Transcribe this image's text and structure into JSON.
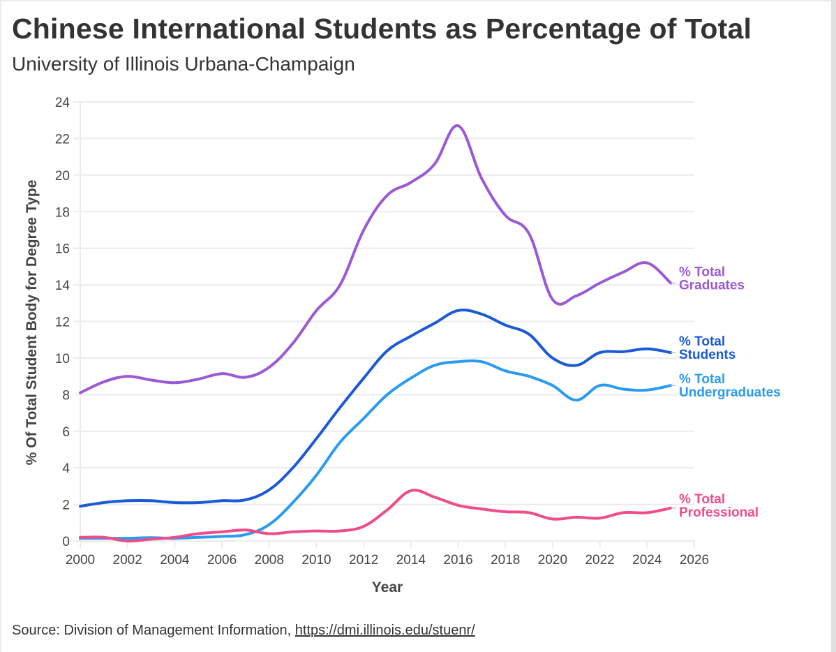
{
  "header": {
    "title": "Chinese International Students as Percentage of Total",
    "subtitle": "University of Illinois Urbana-Champaign"
  },
  "footer": {
    "source_prefix": "Source: Division of Management Information, ",
    "source_link": "https://dmi.illinois.edu/stuenr/"
  },
  "chart_data": {
    "type": "line",
    "title": "Chinese International Students as Percentage of Total",
    "subtitle": "University of Illinois Urbana-Champaign",
    "xlabel": "Year",
    "ylabel": "% Of Total Student Body for Degree Type",
    "xlim": [
      2000,
      2026
    ],
    "ylim": [
      0,
      24
    ],
    "x_ticks": [
      2000,
      2002,
      2004,
      2006,
      2008,
      2010,
      2012,
      2014,
      2016,
      2018,
      2020,
      2022,
      2024,
      2026
    ],
    "y_ticks": [
      0,
      2,
      4,
      6,
      8,
      10,
      12,
      14,
      16,
      18,
      20,
      22,
      24
    ],
    "grid": true,
    "legend": "direct labels at line ends (right)",
    "x": [
      2000,
      2001,
      2002,
      2003,
      2004,
      2005,
      2006,
      2007,
      2008,
      2009,
      2010,
      2011,
      2012,
      2013,
      2014,
      2015,
      2016,
      2017,
      2018,
      2019,
      2020,
      2021,
      2022,
      2023,
      2024,
      2025
    ],
    "series": [
      {
        "name": "% Total Graduates",
        "label_line1": "% Total",
        "label_line2": "Graduates",
        "color": "#9b59d6",
        "values": [
          8.1,
          8.7,
          9.0,
          8.8,
          8.65,
          8.85,
          9.15,
          8.95,
          9.5,
          10.8,
          12.6,
          14.0,
          17.0,
          18.9,
          19.6,
          20.6,
          22.7,
          19.8,
          17.8,
          16.8,
          13.2,
          13.4,
          14.1,
          14.7,
          15.2,
          14.1
        ]
      },
      {
        "name": "% Total Students",
        "label_line1": "% Total",
        "label_line2": "Students",
        "color": "#1a5ad6",
        "values": [
          1.9,
          2.1,
          2.2,
          2.2,
          2.1,
          2.1,
          2.2,
          2.25,
          2.8,
          4.0,
          5.6,
          7.3,
          8.9,
          10.4,
          11.2,
          11.9,
          12.6,
          12.4,
          11.8,
          11.3,
          10.0,
          9.6,
          10.3,
          10.35,
          10.5,
          10.3
        ]
      },
      {
        "name": "% Total Undergraduates",
        "label_line1": "% Total",
        "label_line2": "Undergraduates",
        "color": "#2b9bf0",
        "values": [
          0.15,
          0.15,
          0.15,
          0.18,
          0.15,
          0.2,
          0.25,
          0.35,
          0.9,
          2.1,
          3.6,
          5.4,
          6.7,
          8.0,
          8.9,
          9.6,
          9.8,
          9.8,
          9.3,
          9.0,
          8.5,
          7.7,
          8.5,
          8.3,
          8.25,
          8.5
        ]
      },
      {
        "name": "% Total Professional",
        "label_line1": "% Total",
        "label_line2": "Professional",
        "color": "#ee4d8a",
        "values": [
          0.2,
          0.2,
          0.0,
          0.1,
          0.2,
          0.4,
          0.5,
          0.6,
          0.4,
          0.5,
          0.55,
          0.55,
          0.8,
          1.7,
          2.75,
          2.4,
          1.95,
          1.75,
          1.6,
          1.55,
          1.2,
          1.3,
          1.25,
          1.55,
          1.55,
          1.8
        ]
      }
    ]
  }
}
